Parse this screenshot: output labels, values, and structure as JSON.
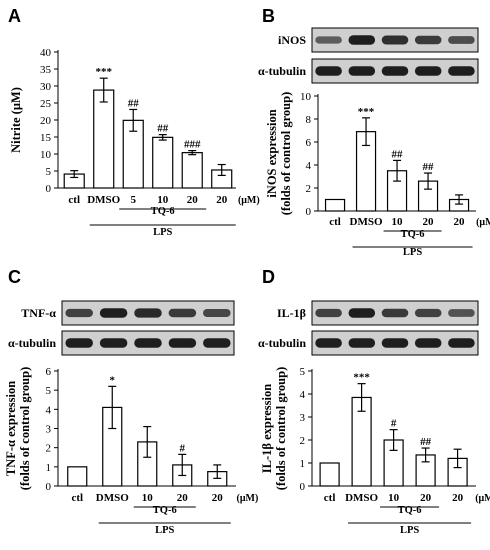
{
  "panels": [
    {
      "letter": "A",
      "chart_data": {
        "type": "bar",
        "title": "",
        "ylabel": "Nitrite (μM)",
        "ylim": [
          0,
          40
        ],
        "yticks": [
          0,
          5,
          10,
          15,
          20,
          25,
          30,
          35,
          40
        ],
        "categories": [
          "ctl",
          "DMSO",
          "5",
          "10",
          "20",
          "20"
        ],
        "values": [
          4.1,
          28.8,
          19.9,
          14.9,
          10.4,
          5.3
        ],
        "errors": [
          1.0,
          3.5,
          3.2,
          0.8,
          0.6,
          1.6
        ],
        "significance": [
          "",
          "***",
          "##",
          "##",
          "###",
          ""
        ],
        "unit": "(μM)",
        "groups": [
          {
            "label": "TQ-6",
            "from": 2,
            "to": 4
          },
          {
            "label": "LPS",
            "from": 1,
            "to": 5
          }
        ]
      }
    },
    {
      "letter": "B",
      "blots": [
        "iNOS",
        "α-tubulin"
      ],
      "chart_data": {
        "type": "bar",
        "title": "",
        "ylabel": [
          "iNOS expression",
          "(folds of control group)"
        ],
        "ylim": [
          0,
          10
        ],
        "yticks": [
          0,
          2,
          4,
          6,
          8,
          10
        ],
        "categories": [
          "ctl",
          "DMSO",
          "10",
          "20",
          "20"
        ],
        "values": [
          1.0,
          6.9,
          3.5,
          2.6,
          1.0
        ],
        "errors": [
          0.0,
          1.2,
          0.9,
          0.7,
          0.4
        ],
        "significance": [
          "",
          "***",
          "##",
          "##",
          ""
        ],
        "unit": "(μM)",
        "groups": [
          {
            "label": "TQ-6",
            "from": 2,
            "to": 3
          },
          {
            "label": "LPS",
            "from": 1,
            "to": 4
          }
        ]
      }
    },
    {
      "letter": "C",
      "blots": [
        "TNF-α",
        "α-tubulin"
      ],
      "chart_data": {
        "type": "bar",
        "title": "",
        "ylabel": [
          "TNF-α expression",
          "(folds of control group)"
        ],
        "ylim": [
          0,
          6
        ],
        "yticks": [
          0,
          1,
          2,
          3,
          4,
          5,
          6
        ],
        "categories": [
          "ctl",
          "DMSO",
          "10",
          "20",
          "20"
        ],
        "values": [
          1.0,
          4.1,
          2.3,
          1.1,
          0.75
        ],
        "errors": [
          0.0,
          1.1,
          0.8,
          0.55,
          0.35
        ],
        "significance": [
          "",
          "*",
          "",
          "#",
          ""
        ],
        "unit": "(μM)",
        "groups": [
          {
            "label": "TQ-6",
            "from": 2,
            "to": 3
          },
          {
            "label": "LPS",
            "from": 1,
            "to": 4
          }
        ]
      }
    },
    {
      "letter": "D",
      "blots": [
        "IL-1β",
        "α-tubulin"
      ],
      "chart_data": {
        "type": "bar",
        "title": "",
        "ylabel": [
          "IL-1β expression",
          "(folds of control group)"
        ],
        "ylim": [
          0,
          5
        ],
        "yticks": [
          0,
          1,
          2,
          3,
          4,
          5
        ],
        "categories": [
          "ctl",
          "DMSO",
          "10",
          "20",
          "20"
        ],
        "values": [
          1.0,
          3.85,
          2.0,
          1.35,
          1.2
        ],
        "errors": [
          0.0,
          0.6,
          0.45,
          0.3,
          0.4
        ],
        "significance": [
          "",
          "***",
          "#",
          "##",
          ""
        ],
        "unit": "(μM)",
        "groups": [
          {
            "label": "TQ-6",
            "from": 2,
            "to": 3
          },
          {
            "label": "LPS",
            "from": 1,
            "to": 4
          }
        ]
      }
    }
  ]
}
